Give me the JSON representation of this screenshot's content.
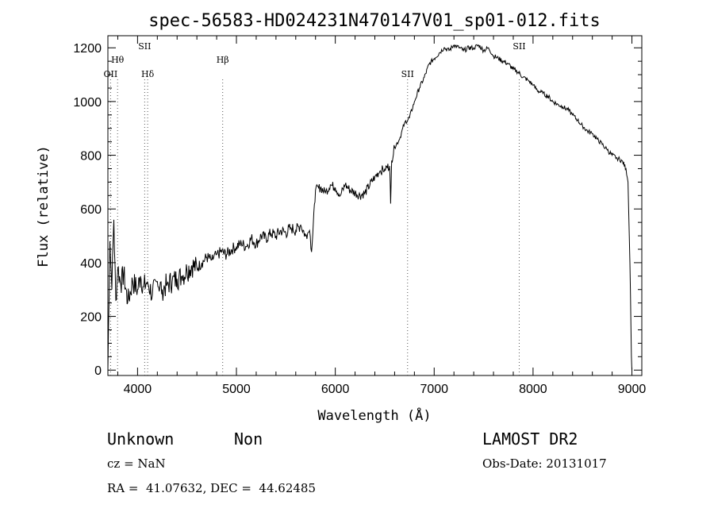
{
  "chart_data": {
    "type": "line",
    "title": "spec-56583-HD024231N470147V01_sp01-012.fits",
    "xlabel": "Wavelength (Å)",
    "ylabel": "Flux (relative)",
    "xlim": [
      3700,
      9100
    ],
    "ylim": [
      -20,
      1245
    ],
    "xticks": [
      4000,
      5000,
      6000,
      7000,
      8000,
      9000
    ],
    "yticks": [
      0,
      200,
      400,
      600,
      800,
      1000,
      1200
    ],
    "xtick_labels": [
      "4000",
      "5000",
      "6000",
      "7000",
      "8000",
      "9000"
    ],
    "ytick_labels": [
      "0",
      "200",
      "400",
      "600",
      "800",
      "1000",
      "1200"
    ],
    "grid": false,
    "series": [
      {
        "x": [
          3700,
          3720,
          3740,
          3760,
          3780,
          3800,
          3830,
          3860,
          3900,
          3950,
          4000,
          4030,
          4060,
          4100,
          4150,
          4200,
          4250,
          4300,
          4350,
          4400,
          4450,
          4500,
          4550,
          4600,
          4650,
          4700,
          4750,
          4800,
          4850,
          4900,
          4950,
          5000,
          5050,
          5100,
          5150,
          5200,
          5250,
          5300,
          5350,
          5400,
          5450,
          5500,
          5550,
          5600,
          5650,
          5700,
          5720,
          5740,
          5760,
          5800,
          5850,
          5900,
          5950,
          6000,
          6050,
          6100,
          6150,
          6200,
          6250,
          6300,
          6350,
          6400,
          6450,
          6500,
          6550,
          6560,
          6570,
          6600,
          6650,
          6700,
          6750,
          6800,
          6850,
          6900,
          6950,
          7000,
          7050,
          7100,
          7150,
          7200,
          7250,
          7300,
          7350,
          7400,
          7450,
          7500,
          7550,
          7600,
          7650,
          7700,
          7750,
          7800,
          7850,
          7900,
          7950,
          8000,
          8050,
          8100,
          8150,
          8200,
          8250,
          8300,
          8350,
          8400,
          8450,
          8500,
          8550,
          8600,
          8650,
          8700,
          8750,
          8800,
          8850,
          8900,
          8940,
          8960,
          8980,
          8995,
          9000
        ],
        "y": [
          0,
          480,
          300,
          560,
          260,
          380,
          320,
          360,
          250,
          330,
          300,
          350,
          310,
          330,
          280,
          330,
          300,
          320,
          330,
          340,
          350,
          370,
          390,
          380,
          400,
          420,
          410,
          430,
          440,
          430,
          450,
          460,
          470,
          460,
          490,
          470,
          500,
          490,
          510,
          500,
          520,
          510,
          530,
          520,
          540,
          500,
          510,
          520,
          440,
          670,
          680,
          660,
          690,
          680,
          650,
          690,
          670,
          660,
          650,
          660,
          690,
          720,
          740,
          750,
          760,
          620,
          780,
          830,
          860,
          920,
          940,
          1000,
          1050,
          1090,
          1140,
          1160,
          1180,
          1200,
          1190,
          1210,
          1200,
          1190,
          1200,
          1200,
          1210,
          1190,
          1200,
          1170,
          1160,
          1150,
          1140,
          1120,
          1110,
          1090,
          1080,
          1060,
          1040,
          1030,
          1020,
          1000,
          990,
          980,
          970,
          950,
          930,
          910,
          890,
          880,
          860,
          840,
          820,
          800,
          790,
          780,
          750,
          700,
          400,
          50,
          0
        ]
      }
    ],
    "annotations": [
      {
        "label": "Hθ",
        "x": 3798,
        "row": 1
      },
      {
        "label": "OII",
        "x": 3727,
        "row": 2
      },
      {
        "label": "SII",
        "x": 4072,
        "row": 0
      },
      {
        "label": "Hδ",
        "x": 4102,
        "row": 2
      },
      {
        "label": "Hβ",
        "x": 4861,
        "row": 1
      },
      {
        "label": "SII",
        "x": 6731,
        "row": 2
      },
      {
        "label": "SII",
        "x": 7860,
        "row": 0
      }
    ]
  },
  "footer": {
    "class_label": "Unknown",
    "subclass_label": "Non",
    "survey": "LAMOST DR2",
    "cz": "cz = NaN",
    "obs_date": "Obs-Date: 20131017",
    "coords": "RA =  41.07632, DEC =  44.62485"
  }
}
